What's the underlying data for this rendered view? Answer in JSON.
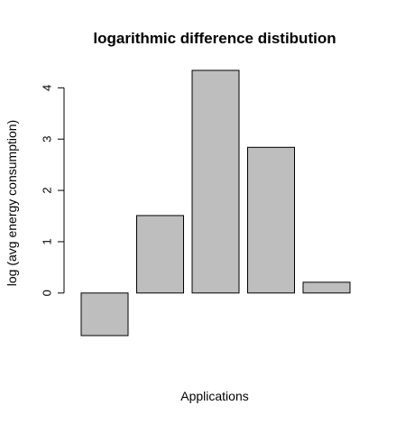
{
  "chart_data": {
    "type": "bar",
    "title": "logarithmic difference distibution",
    "xlabel": "Applications",
    "ylabel": "log (avg energy consumption)",
    "categories": [
      "",
      "",
      "",
      "",
      ""
    ],
    "values": [
      -0.83,
      1.51,
      4.34,
      2.84,
      0.21
    ],
    "yticks": [
      0,
      1,
      2,
      3,
      4
    ],
    "ylim": [
      -0.83,
      4.34
    ],
    "bar_color": "#bebebe",
    "border_color": "#000000",
    "grid": false,
    "legend": "none"
  }
}
